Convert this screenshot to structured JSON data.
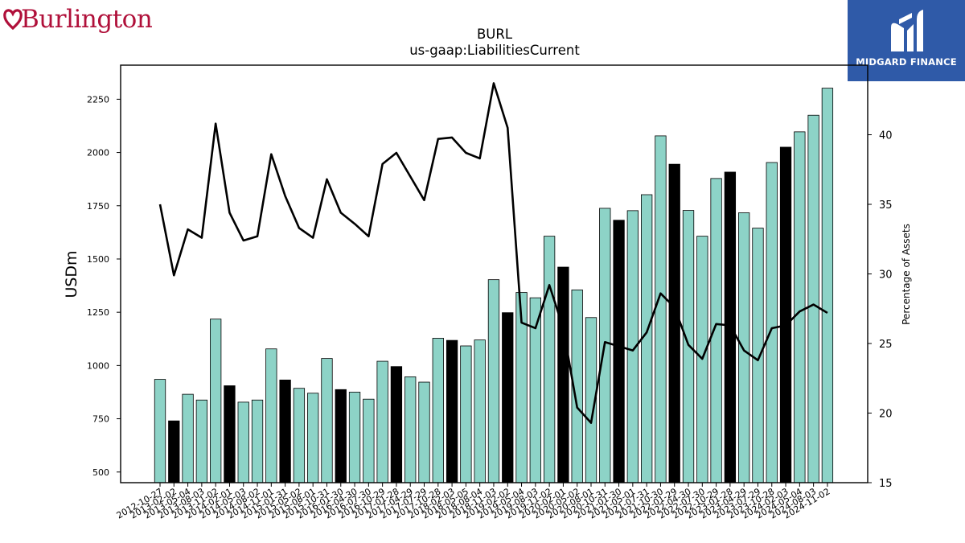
{
  "branding": {
    "company_logo_text": "Burlington",
    "publisher_logo_text": "MIDGARD FINANCE",
    "company_color": "#b0103a",
    "publisher_bg": "#2f5aa8"
  },
  "chart_data": {
    "type": "bar",
    "title": "BURL",
    "subtitle": "us-gaap:LiabilitiesCurrent",
    "ylabel": "USDm",
    "y2label": "Percentage of Assets",
    "ylim": [
      450,
      2410
    ],
    "y2lim": [
      15,
      45
    ],
    "yticks": [
      500,
      750,
      1000,
      1250,
      1500,
      1750,
      2000,
      2250
    ],
    "y2ticks": [
      15,
      20,
      25,
      30,
      35,
      40
    ],
    "bar_color": "#8dd3c7",
    "highlight_color": "#000000",
    "line_color": "#000000",
    "categories": [
      "2012-10-27",
      "2013-02-02",
      "2013-05-04",
      "2013-08-03",
      "2013-11-02",
      "2014-02-01",
      "2014-05-03",
      "2014-08-02",
      "2014-11-01",
      "2015-01-31",
      "2015-05-02",
      "2015-08-01",
      "2015-10-31",
      "2016-01-30",
      "2016-04-30",
      "2016-07-30",
      "2016-10-29",
      "2017-01-28",
      "2017-04-29",
      "2017-07-29",
      "2017-10-28",
      "2018-02-03",
      "2018-05-05",
      "2018-08-04",
      "2018-11-03",
      "2019-02-02",
      "2019-05-04",
      "2019-08-03",
      "2019-11-02",
      "2020-02-01",
      "2020-05-02",
      "2020-08-01",
      "2020-10-31",
      "2021-01-30",
      "2021-05-01",
      "2021-07-31",
      "2021-10-30",
      "2022-01-29",
      "2022-04-30",
      "2022-07-30",
      "2022-10-29",
      "2023-01-28",
      "2023-04-29",
      "2023-07-29",
      "2023-10-28",
      "2024-02-03",
      "2024-05-04",
      "2024-08-03",
      "2024-11-02"
    ],
    "values": [
      935,
      740,
      865,
      838,
      1218,
      905,
      828,
      838,
      1078,
      932,
      893,
      870,
      1033,
      887,
      875,
      842,
      1020,
      995,
      947,
      922,
      1128,
      1118,
      1092,
      1120,
      1403,
      1248,
      1343,
      1318,
      1607,
      1462,
      1355,
      1225,
      1738,
      1682,
      1727,
      1802,
      2078,
      1945,
      1728,
      1607,
      1878,
      1908,
      1717,
      1645,
      1953,
      2025,
      2097,
      2175,
      2302
    ],
    "highlight": [
      false,
      true,
      false,
      false,
      false,
      true,
      false,
      false,
      false,
      true,
      false,
      false,
      false,
      true,
      false,
      false,
      false,
      true,
      false,
      false,
      false,
      true,
      false,
      false,
      false,
      true,
      false,
      false,
      false,
      true,
      false,
      false,
      false,
      true,
      false,
      false,
      false,
      true,
      false,
      false,
      false,
      true,
      false,
      false,
      false,
      true,
      false,
      false,
      false
    ],
    "pct_of_assets": [
      35.0,
      29.9,
      33.2,
      32.6,
      40.8,
      34.4,
      32.4,
      32.7,
      38.6,
      35.6,
      33.3,
      32.6,
      36.8,
      34.4,
      33.6,
      32.7,
      37.9,
      38.7,
      37.0,
      35.3,
      39.7,
      39.8,
      38.7,
      38.3,
      43.7,
      40.5,
      26.5,
      26.1,
      29.2,
      26.1,
      20.4,
      19.3,
      25.1,
      24.8,
      24.5,
      25.8,
      28.6,
      27.6,
      24.9,
      23.9,
      26.4,
      26.3,
      24.5,
      23.8,
      26.1,
      26.3,
      27.3,
      27.8,
      27.2
    ]
  }
}
